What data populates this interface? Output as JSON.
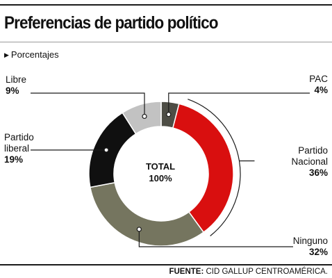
{
  "header": {
    "title": "Preferencias de partido político",
    "subtitle": "Porcentajes",
    "subtitle_icon": "triangle-right-icon"
  },
  "footer": {
    "source_label": "FUENTE:",
    "source_text": "CID GALLUP CENTROAMÉRICA."
  },
  "chart_data": {
    "type": "pie",
    "style": "donut",
    "unit": "%",
    "center_label": [
      "TOTAL",
      "100%"
    ],
    "slices": [
      {
        "label": "PAC",
        "value": 4,
        "display": "4%",
        "color": "#4d4d45"
      },
      {
        "label": "Partido Nacional",
        "value": 36,
        "display": "36%",
        "color": "#d90f0f"
      },
      {
        "label": "Ninguno",
        "value": 32,
        "display": "32%",
        "color": "#75755f"
      },
      {
        "label": "Partido liberal",
        "value": 19,
        "display": "19%",
        "color": "#101010"
      },
      {
        "label": "Libre",
        "value": 9,
        "display": "9%",
        "color": "#c2c2c2"
      }
    ]
  }
}
